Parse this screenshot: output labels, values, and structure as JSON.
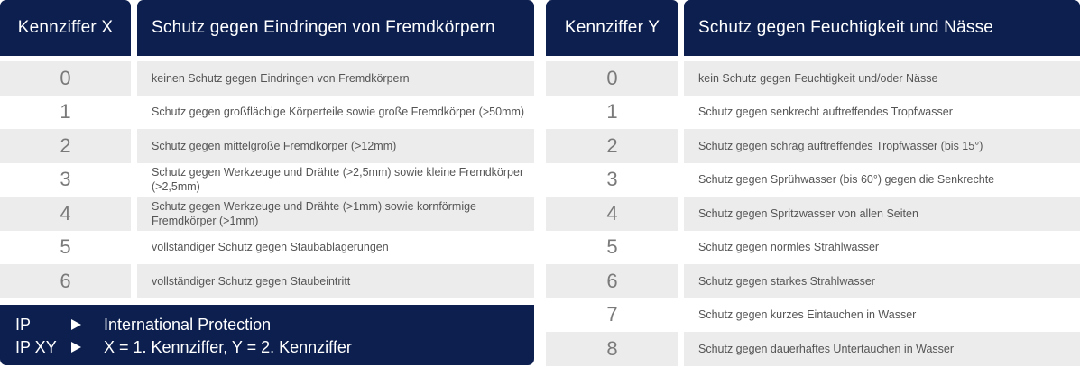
{
  "left": {
    "headers": [
      "Kennziffer X",
      "Schutz gegen Eindringen von Fremdkörpern"
    ],
    "rows": [
      [
        "0",
        "keinen Schutz gegen Eindringen von Fremdkörpern"
      ],
      [
        "1",
        "Schutz gegen großflächige Körperteile sowie große Fremdkörper (>50mm)"
      ],
      [
        "2",
        "Schutz gegen mittelgroße Fremdkörper (>12mm)"
      ],
      [
        "3",
        "Schutz gegen Werkzeuge und Drähte (>2,5mm) sowie kleine Fremdkörper (>2,5mm)"
      ],
      [
        "4",
        "Schutz gegen Werkzeuge und Drähte (>1mm) sowie kornförmige Fremdkörper (>1mm)"
      ],
      [
        "5",
        "vollständiger Schutz gegen Staubablagerungen"
      ],
      [
        "6",
        "vollständiger Schutz gegen Staubeintritt"
      ]
    ]
  },
  "right": {
    "headers": [
      "Kennziffer Y",
      "Schutz gegen Feuchtigkeit und Nässe"
    ],
    "rows": [
      [
        "0",
        "kein Schutz gegen Feuchtigkeit und/oder Nässe"
      ],
      [
        "1",
        "Schutz gegen senkrecht auftreffendes Tropfwasser"
      ],
      [
        "2",
        "Schutz gegen schräg auftreffendes Tropfwasser (bis 15°)"
      ],
      [
        "3",
        "Schutz gegen Sprühwasser (bis 60°) gegen die Senkrechte"
      ],
      [
        "4",
        "Schutz gegen Spritzwasser von allen Seiten"
      ],
      [
        "5",
        "Schutz gegen normles Strahlwasser"
      ],
      [
        "6",
        "Schutz gegen starkes Strahlwasser"
      ],
      [
        "7",
        "Schutz gegen kurzes Eintauchen in Wasser"
      ],
      [
        "8",
        "Schutz gegen dauerhaftes Untertauchen in Wasser"
      ]
    ]
  },
  "legend": [
    [
      "IP",
      "International Protection"
    ],
    [
      "IP XY",
      "X = 1. Kennziffer, Y = 2. Kennziffer"
    ]
  ]
}
